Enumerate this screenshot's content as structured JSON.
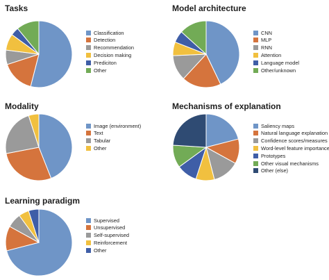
{
  "chart_data": [
    {
      "type": "pie",
      "title": "Tasks",
      "categories": [
        "Classification",
        "Detection",
        "Recommendation",
        "Decision making",
        "Prediciton",
        "Other"
      ],
      "values": [
        54,
        16,
        7,
        8,
        4,
        11
      ],
      "colors": [
        "#6f95c7",
        "#d5743d",
        "#9a9a9a",
        "#f1c03f",
        "#3f5ea7",
        "#72ab56"
      ],
      "legend_position": "right"
    },
    {
      "type": "pie",
      "title": "Model architecture",
      "categories": [
        "CNN",
        "MLP",
        "RNN",
        "Attention",
        "Language model",
        "Other/unknown"
      ],
      "values": [
        45,
        20,
        13,
        7,
        6,
        14
      ],
      "colors": [
        "#6f95c7",
        "#d5743d",
        "#9a9a9a",
        "#f1c03f",
        "#3f5ea7",
        "#72ab56"
      ],
      "legend_position": "right"
    },
    {
      "type": "pie",
      "title": "Modality",
      "categories": [
        "Image (environment)",
        "Text",
        "Tabular",
        "Other"
      ],
      "values": [
        44,
        28,
        23,
        5
      ],
      "colors": [
        "#6f95c7",
        "#d5743d",
        "#9a9a9a",
        "#f1c03f"
      ],
      "legend_position": "right"
    },
    {
      "type": "pie",
      "title": "Mechanisms of explanation",
      "categories": [
        "Saliency maps",
        "Natural language explanation",
        "Confidence scores/measures",
        "Word-level feature importance",
        "Prototypes",
        "Other visual mechanisms",
        "Other (else)"
      ],
      "values": [
        21,
        12,
        13,
        9,
        10,
        11,
        24
      ],
      "colors": [
        "#6f95c7",
        "#d5743d",
        "#9a9a9a",
        "#f1c03f",
        "#3f5ea7",
        "#72ab56",
        "#2f4b73"
      ],
      "legend_position": "right"
    },
    {
      "type": "pie",
      "title": "Learning paradigm",
      "categories": [
        "Supervised",
        "Unsupervised",
        "Self-supervised",
        "Reinforcement",
        "Other"
      ],
      "values": [
        71,
        12,
        7,
        5,
        5
      ],
      "colors": [
        "#6f95c7",
        "#d5743d",
        "#9a9a9a",
        "#f1c03f",
        "#3f5ea7"
      ],
      "legend_position": "right"
    }
  ]
}
